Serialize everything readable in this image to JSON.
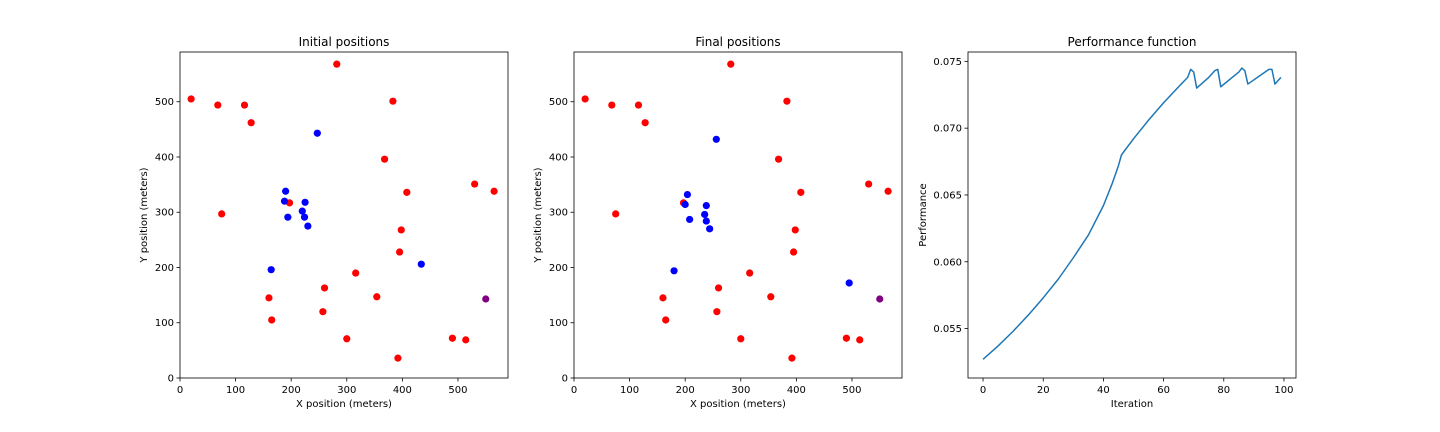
{
  "colors": {
    "red": "#ff0000",
    "blue": "#0000ff",
    "purple": "#800080",
    "line": "#1f77b4"
  },
  "chart_data": [
    {
      "type": "scatter",
      "title": "Initial positions",
      "xlabel": "X position (meters)",
      "ylabel": "Y position (meters)",
      "xlim": [
        0,
        590
      ],
      "ylim": [
        0,
        590
      ],
      "xticks": [
        0,
        100,
        200,
        300,
        400,
        500
      ],
      "yticks": [
        0,
        100,
        200,
        300,
        400,
        500
      ],
      "series": [
        {
          "color": "red",
          "points": [
            [
              20,
              505
            ],
            [
              68,
              494
            ],
            [
              116,
              494
            ],
            [
              128,
              462
            ],
            [
              75,
              297
            ],
            [
              282,
              568
            ],
            [
              383,
              501
            ],
            [
              368,
              396
            ],
            [
              408,
              336
            ],
            [
              530,
              351
            ],
            [
              565,
              338
            ],
            [
              398,
              268
            ],
            [
              395,
              228
            ],
            [
              197,
              317
            ],
            [
              316,
              190
            ],
            [
              260,
              163
            ],
            [
              257,
              120
            ],
            [
              160,
              145
            ],
            [
              165,
              105
            ],
            [
              300,
              71
            ],
            [
              354,
              147
            ],
            [
              490,
              72
            ],
            [
              514,
              69
            ],
            [
              392,
              36
            ]
          ]
        },
        {
          "color": "blue",
          "points": [
            [
              247,
              443
            ],
            [
              190,
              338
            ],
            [
              188,
              320
            ],
            [
              225,
              318
            ],
            [
              220,
              302
            ],
            [
              194,
              291
            ],
            [
              224,
              291
            ],
            [
              230,
              275
            ],
            [
              164,
              196
            ],
            [
              434,
              206
            ]
          ]
        },
        {
          "color": "purple",
          "points": [
            [
              550,
              143
            ]
          ]
        }
      ]
    },
    {
      "type": "scatter",
      "title": "Final positions",
      "xlabel": "X position (meters)",
      "ylabel": "Y position (meters)",
      "xlim": [
        0,
        590
      ],
      "ylim": [
        0,
        590
      ],
      "xticks": [
        0,
        100,
        200,
        300,
        400,
        500
      ],
      "yticks": [
        0,
        100,
        200,
        300,
        400,
        500
      ],
      "series": [
        {
          "color": "red",
          "points": [
            [
              20,
              505
            ],
            [
              68,
              494
            ],
            [
              116,
              494
            ],
            [
              128,
              462
            ],
            [
              75,
              297
            ],
            [
              282,
              568
            ],
            [
              383,
              501
            ],
            [
              368,
              396
            ],
            [
              408,
              336
            ],
            [
              530,
              351
            ],
            [
              565,
              338
            ],
            [
              398,
              268
            ],
            [
              395,
              228
            ],
            [
              197,
              317
            ],
            [
              316,
              190
            ],
            [
              260,
              163
            ],
            [
              257,
              120
            ],
            [
              160,
              145
            ],
            [
              165,
              105
            ],
            [
              300,
              71
            ],
            [
              354,
              147
            ],
            [
              490,
              72
            ],
            [
              514,
              69
            ],
            [
              392,
              36
            ]
          ]
        },
        {
          "color": "blue",
          "points": [
            [
              256,
              432
            ],
            [
              204,
              332
            ],
            [
              200,
              314
            ],
            [
              238,
              312
            ],
            [
              235,
              296
            ],
            [
              208,
              287
            ],
            [
              238,
              284
            ],
            [
              244,
              270
            ],
            [
              180,
              194
            ],
            [
              495,
              172
            ]
          ]
        },
        {
          "color": "purple",
          "points": [
            [
              550,
              143
            ]
          ]
        }
      ]
    },
    {
      "type": "line",
      "title": "Performance function",
      "xlabel": "Iteration",
      "ylabel": "Performance",
      "xlim": [
        -5,
        104
      ],
      "ylim": [
        0.0513,
        0.0757
      ],
      "xticks": [
        0,
        20,
        40,
        60,
        80,
        100
      ],
      "yticks": [
        0.055,
        0.06,
        0.065,
        0.07,
        0.075
      ],
      "ytick_labels": [
        "0.055",
        "0.060",
        "0.065",
        "0.070",
        "0.075"
      ],
      "series": [
        {
          "color": "line",
          "x": [
            0,
            5,
            10,
            15,
            20,
            25,
            30,
            35,
            40,
            43,
            45,
            46,
            50,
            55,
            60,
            65,
            68,
            69,
            70,
            71,
            75,
            77,
            78,
            79,
            85,
            86,
            87,
            88,
            95,
            96,
            97,
            99
          ],
          "y": [
            0.0527,
            0.0537,
            0.0548,
            0.056,
            0.0573,
            0.0587,
            0.0603,
            0.062,
            0.0642,
            0.0659,
            0.0672,
            0.068,
            0.0692,
            0.0706,
            0.0719,
            0.0731,
            0.0738,
            0.0744,
            0.0742,
            0.073,
            0.0738,
            0.0743,
            0.0744,
            0.0731,
            0.0742,
            0.0745,
            0.0743,
            0.0733,
            0.0744,
            0.0744,
            0.0733,
            0.0738
          ]
        }
      ]
    }
  ]
}
